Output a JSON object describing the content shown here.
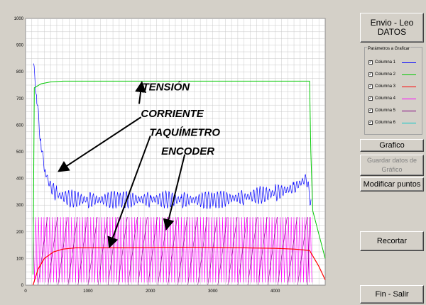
{
  "chart_data": {
    "type": "line",
    "title": "",
    "xlabel": "",
    "ylabel": "",
    "xlim": [
      0,
      4800
    ],
    "ylim": [
      0,
      1000
    ],
    "x_ticks": [
      "0",
      "1000",
      "2000",
      "3000",
      "4000"
    ],
    "y_ticks": [
      "0",
      "100",
      "200",
      "300",
      "400",
      "500",
      "600",
      "700",
      "800",
      "900",
      "1000"
    ],
    "grid": true,
    "series": [
      {
        "name": "Columna 1",
        "color": "#0000ff",
        "points": [
          [
            130,
            820
          ],
          [
            180,
            700
          ],
          [
            250,
            520
          ],
          [
            320,
            420
          ],
          [
            400,
            370
          ],
          [
            500,
            340
          ],
          [
            700,
            325
          ],
          [
            1000,
            320
          ],
          [
            1500,
            320
          ],
          [
            2000,
            322
          ],
          [
            2500,
            320
          ],
          [
            3000,
            318
          ],
          [
            3500,
            330
          ],
          [
            4000,
            345
          ],
          [
            4300,
            365
          ],
          [
            4500,
            400
          ],
          [
            4580,
            300
          ]
        ]
      },
      {
        "name": "Columna 2",
        "color": "#00c800",
        "points": [
          [
            120,
            40
          ],
          [
            140,
            740
          ],
          [
            250,
            755
          ],
          [
            400,
            762
          ],
          [
            600,
            765
          ],
          [
            1000,
            765
          ],
          [
            2000,
            765
          ],
          [
            3000,
            765
          ],
          [
            4000,
            765
          ],
          [
            4550,
            765
          ],
          [
            4570,
            500
          ],
          [
            4600,
            280
          ],
          [
            4800,
            100
          ]
        ]
      },
      {
        "name": "Columna 3",
        "color": "#ff0000",
        "points": [
          [
            120,
            0
          ],
          [
            200,
            60
          ],
          [
            300,
            100
          ],
          [
            450,
            125
          ],
          [
            600,
            135
          ],
          [
            800,
            140
          ],
          [
            1500,
            140
          ],
          [
            2500,
            142
          ],
          [
            3500,
            140
          ],
          [
            4000,
            138
          ],
          [
            4300,
            135
          ],
          [
            4550,
            130
          ],
          [
            4700,
            70
          ],
          [
            4800,
            20
          ]
        ]
      },
      {
        "name": "Columna 4",
        "color": "#ff00ff",
        "oscillation": {
          "min": 10,
          "max": 255,
          "x_start": 120,
          "x_end": 4600
        }
      },
      {
        "name": "Columna 5",
        "color": "#800080",
        "sawtooth": {
          "min": 0,
          "max": 255,
          "x_start": 200,
          "x_end": 4550
        }
      },
      {
        "name": "Columna 6",
        "color": "#00c8c8",
        "points": []
      }
    ],
    "annotations": [
      {
        "text": "TENSIÓN",
        "x": 2250,
        "y": 730
      },
      {
        "text": "CORRIENTE",
        "x": 2350,
        "y": 630
      },
      {
        "text": "TAQUÍMETRO",
        "x": 2550,
        "y": 560
      },
      {
        "text": "ENCODER",
        "x": 2600,
        "y": 490
      }
    ]
  },
  "panel": {
    "envio_label_1": "Envio - Leo",
    "envio_label_2": "DATOS",
    "group_title": "Parámetros a Graficar",
    "columns": [
      {
        "label": "Columna 1",
        "checked": "✓",
        "color": "#0000ff"
      },
      {
        "label": "Columna 2",
        "checked": "✓",
        "color": "#00c800"
      },
      {
        "label": "Columna 3",
        "checked": "✓",
        "color": "#ff0000"
      },
      {
        "label": "Columna 4",
        "checked": "✓",
        "color": "#ff00ff"
      },
      {
        "label": "Columna 5",
        "checked": "✓",
        "color": "#800080"
      },
      {
        "label": "Columna 6",
        "checked": "✓",
        "color": "#00c8c8"
      }
    ],
    "grafico_label": "Grafico",
    "guardar_label_1": "Guardar datos de",
    "guardar_label_2": "Gráfico",
    "modificar_label": "Modificar puntos",
    "recortar_label": "Recortar",
    "salir_label": "Fin - Salir"
  }
}
